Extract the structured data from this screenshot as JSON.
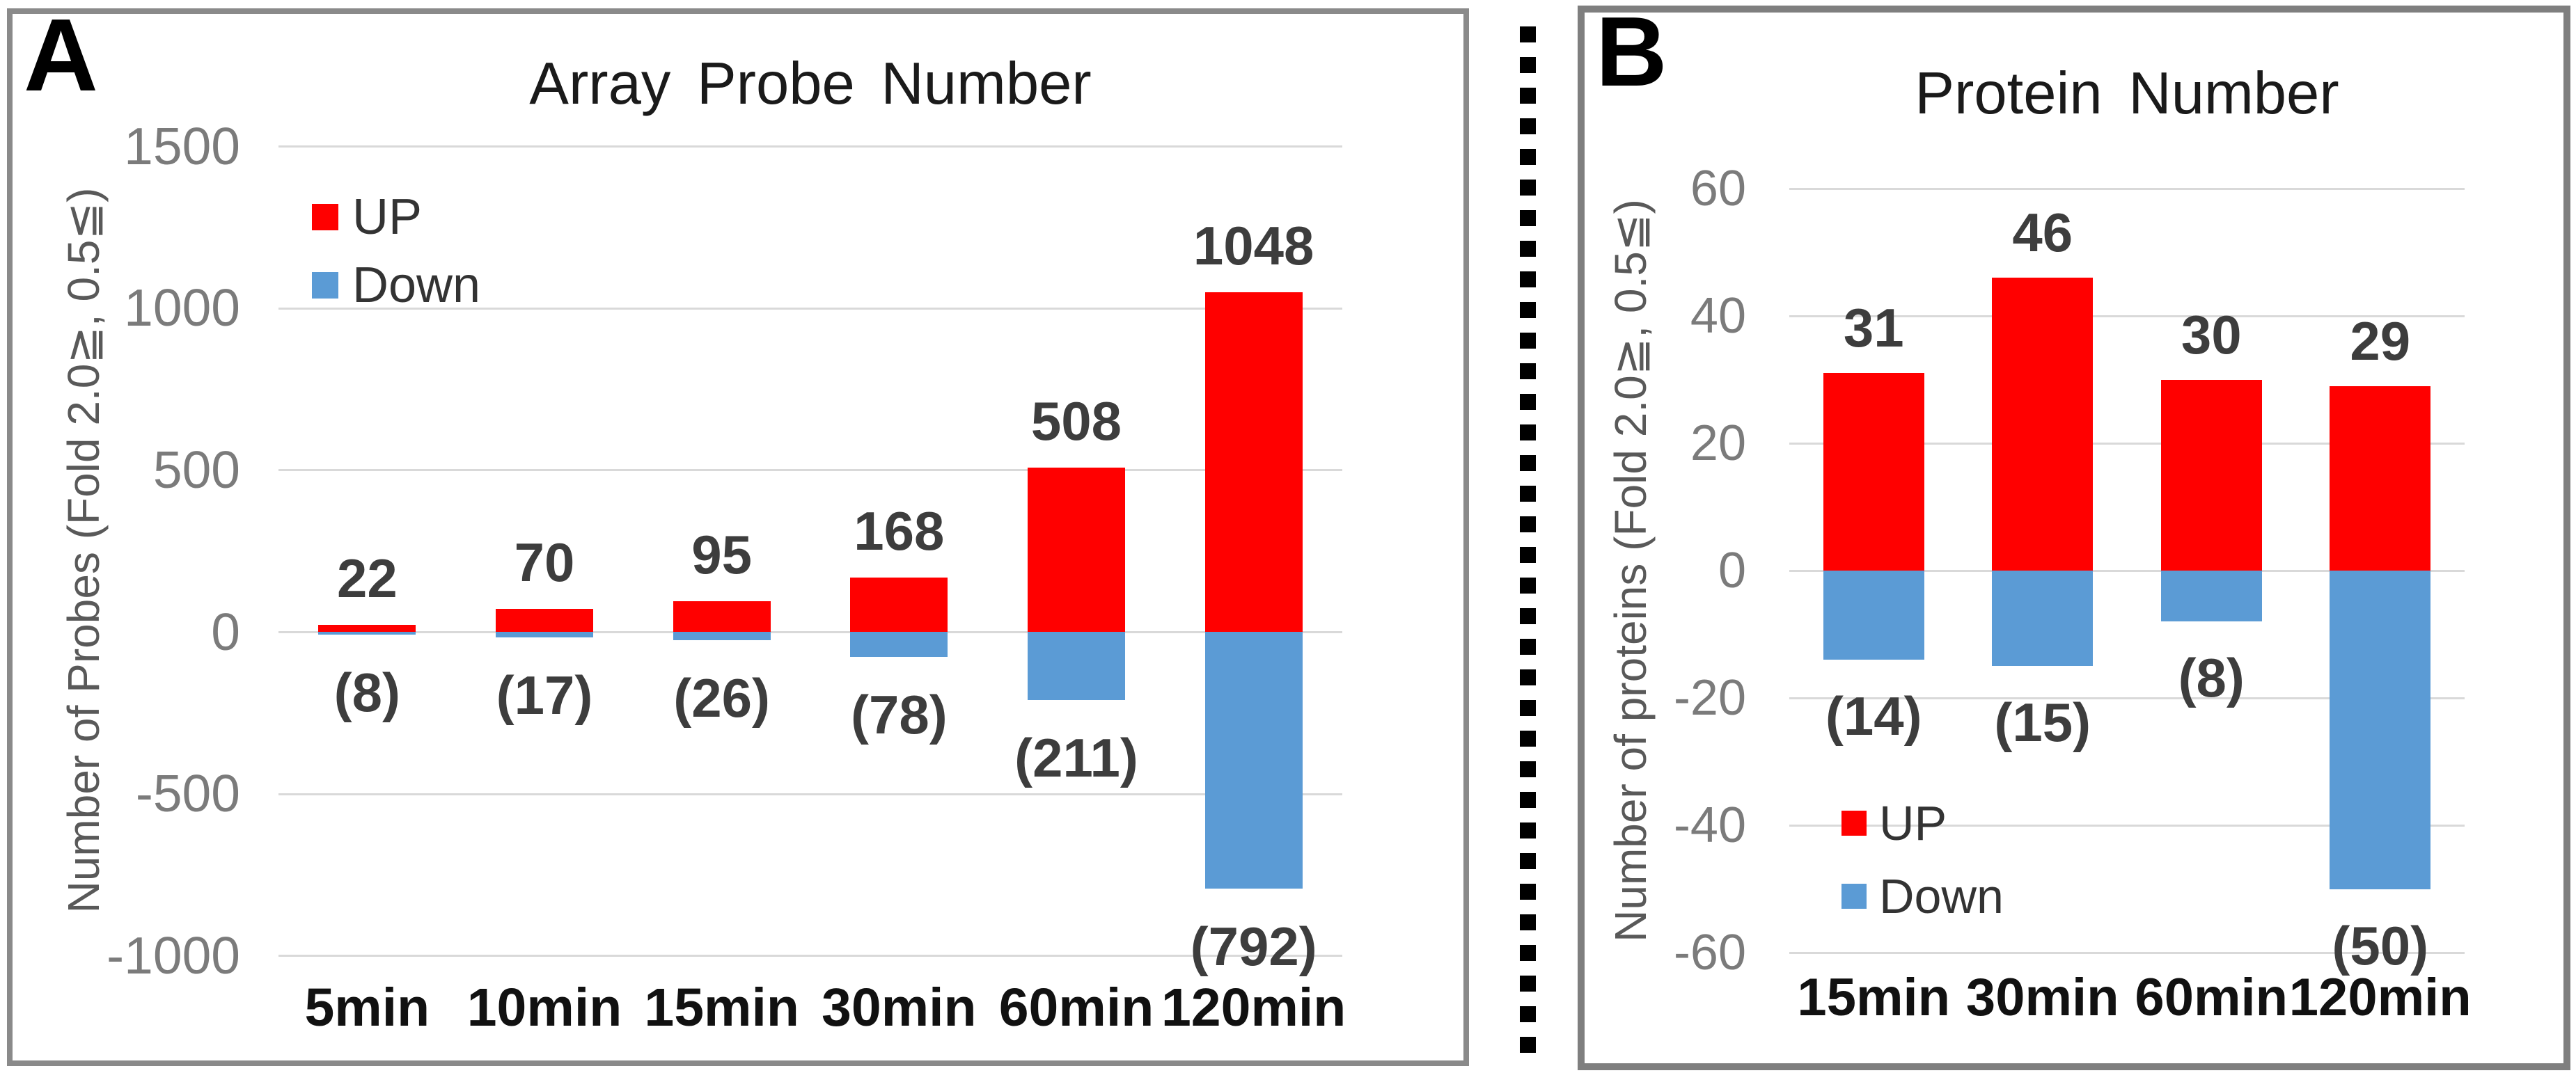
{
  "figure": {
    "background": "#ffffff"
  },
  "panels": [
    {
      "corner_label": "A"
    },
    {
      "corner_label": "B"
    }
  ],
  "divider": {
    "style": "vertical-dotted-line",
    "color": "#000000"
  },
  "chart_data": [
    {
      "type": "bar",
      "variant": "diverging-stacked-column",
      "title": "Array Probe Number",
      "xlabel": "",
      "ylabel": "Number of Probes (Fold 2.0≧, 0.5≦)",
      "categories": [
        "5min",
        "10min",
        "15min",
        "30min",
        "60min",
        "120min"
      ],
      "series": [
        {
          "name": "UP",
          "color": "#FF0000",
          "values": [
            22,
            70,
            95,
            168,
            508,
            1048
          ],
          "labels": [
            "22",
            "70",
            "95",
            "168",
            "508",
            "1048"
          ]
        },
        {
          "name": "Down",
          "color": "#5B9BD5",
          "values": [
            -8,
            -17,
            -26,
            -78,
            -211,
            -792
          ],
          "labels": [
            "(8)",
            "(17)",
            "(26)",
            "(78)",
            "(211)",
            "(792)"
          ]
        }
      ],
      "y_ticks": [
        1500,
        1000,
        500,
        0,
        -500,
        -1000
      ],
      "ylim": [
        -1000,
        1500
      ],
      "grid": true,
      "gridline_color": "#D9D9D9",
      "legend_position": "upper-left-inside"
    },
    {
      "type": "bar",
      "variant": "diverging-stacked-column",
      "title": "Protein Number",
      "xlabel": "",
      "ylabel": "Number of proteins (Fold 2.0≧, 0.5≦)",
      "categories": [
        "15min",
        "30min",
        "60min",
        "120min"
      ],
      "series": [
        {
          "name": "UP",
          "color": "#FF0000",
          "values": [
            31,
            46,
            30,
            29
          ],
          "labels": [
            "31",
            "46",
            "30",
            "29"
          ]
        },
        {
          "name": "Down",
          "color": "#5B9BD5",
          "values": [
            -14,
            -15,
            -8,
            -50
          ],
          "labels": [
            "(14)",
            "(15)",
            "(8)",
            "(50)"
          ]
        }
      ],
      "y_ticks": [
        60,
        40,
        20,
        0,
        -20,
        -40,
        -60
      ],
      "ylim": [
        -60,
        60
      ],
      "grid": true,
      "gridline_color": "#D9D9D9",
      "legend_position": "lower-left-inside"
    }
  ]
}
